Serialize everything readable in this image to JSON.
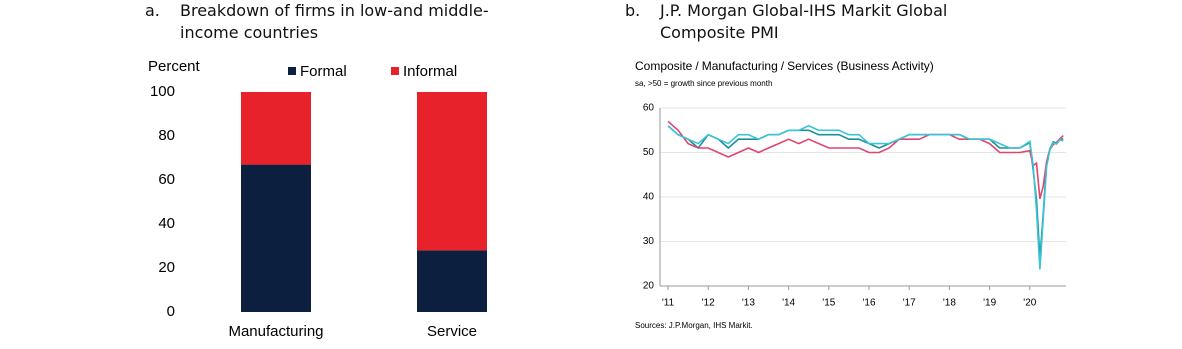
{
  "chart_data": [
    {
      "type": "bar",
      "stacked": true,
      "panel_label": "a.",
      "title": "Breakdown of firms in low-and middle-income countries",
      "ylabel": "Percent",
      "categories": [
        "Manufacturing",
        "Service"
      ],
      "series": [
        {
          "name": "Formal",
          "color": "#0c1f3f",
          "values": [
            67,
            28
          ]
        },
        {
          "name": "Informal",
          "color": "#e8222b",
          "values": [
            33,
            72
          ]
        }
      ],
      "ylim": [
        0,
        100
      ],
      "yticks": [
        0,
        20,
        40,
        60,
        80,
        100
      ],
      "grid": false,
      "legend": "top"
    },
    {
      "type": "line",
      "panel_label": "b.",
      "title": "J.P. Morgan Global-IHS Markit Global Composite PMI",
      "legend_separator": "/",
      "subtitle": "sa, >50 = growth since previous month",
      "source": "Sources: J.P.Morgan, IHS Markit.",
      "x": [
        2011,
        2011.25,
        2011.5,
        2011.75,
        2012,
        2012.25,
        2012.5,
        2012.75,
        2013,
        2013.25,
        2013.5,
        2013.75,
        2014,
        2014.25,
        2014.5,
        2014.75,
        2015,
        2015.25,
        2015.5,
        2015.75,
        2016,
        2016.25,
        2016.5,
        2016.75,
        2017,
        2017.25,
        2017.5,
        2017.75,
        2018,
        2018.25,
        2018.5,
        2018.75,
        2019,
        2019.25,
        2019.5,
        2019.75,
        2020,
        2020.083,
        2020.167,
        2020.25,
        2020.333,
        2020.417,
        2020.5,
        2020.583,
        2020.667,
        2020.75,
        2020.833
      ],
      "series": [
        {
          "name": "Composite",
          "color": "#1b8f9c",
          "values": [
            56,
            54,
            53,
            51,
            54,
            53,
            51,
            53,
            53,
            53,
            54,
            54,
            55,
            55,
            55,
            54,
            54,
            54,
            53,
            53,
            52,
            51,
            52,
            53,
            54,
            54,
            54,
            54,
            54,
            54,
            53,
            53,
            53,
            51,
            51,
            51,
            52.2,
            46,
            39.4,
            26.2,
            36,
            47.8,
            50.8,
            52.4,
            52.1,
            53.1,
            53
          ]
        },
        {
          "name": "Manufacturing",
          "color": "#e0446f",
          "values": [
            57,
            55,
            52,
            51,
            51,
            50,
            49,
            50,
            51,
            50,
            51,
            52,
            53,
            52,
            53,
            52,
            51,
            51,
            51,
            51,
            50,
            50,
            51,
            53,
            53,
            53,
            54,
            54,
            54,
            53,
            53,
            53,
            52,
            50,
            50,
            50,
            50.4,
            47.1,
            47.6,
            39.6,
            42.4,
            47.9,
            50.6,
            51.8,
            52.3,
            53.1,
            53.8
          ]
        },
        {
          "name": "Services (Business Activity)",
          "color": "#3cc3d6",
          "values": [
            56,
            54,
            53,
            52,
            54,
            53,
            52,
            54,
            54,
            53,
            54,
            54,
            55,
            55,
            56,
            55,
            55,
            55,
            54,
            54,
            52,
            52,
            52,
            53,
            54,
            54,
            54,
            54,
            54,
            54,
            53,
            53,
            53,
            52,
            51,
            51,
            52.5,
            47.1,
            37,
            23.7,
            35,
            46.8,
            50.6,
            52.2,
            51.9,
            52.9,
            52.6
          ]
        }
      ],
      "xlim": [
        2010.95,
        2020.9
      ],
      "xticks": [
        {
          "value": 2011,
          "label": "'11"
        },
        {
          "value": 2012,
          "label": "'12"
        },
        {
          "value": 2013,
          "label": "'13"
        },
        {
          "value": 2014,
          "label": "'14"
        },
        {
          "value": 2015,
          "label": "'15"
        },
        {
          "value": 2016,
          "label": "'16"
        },
        {
          "value": 2017,
          "label": "'17"
        },
        {
          "value": 2018,
          "label": "'18"
        },
        {
          "value": 2019,
          "label": "'19"
        },
        {
          "value": 2020,
          "label": "'20"
        }
      ],
      "ylim": [
        20,
        60
      ],
      "yticks": [
        20,
        30,
        40,
        50,
        60
      ],
      "grid": true
    }
  ]
}
